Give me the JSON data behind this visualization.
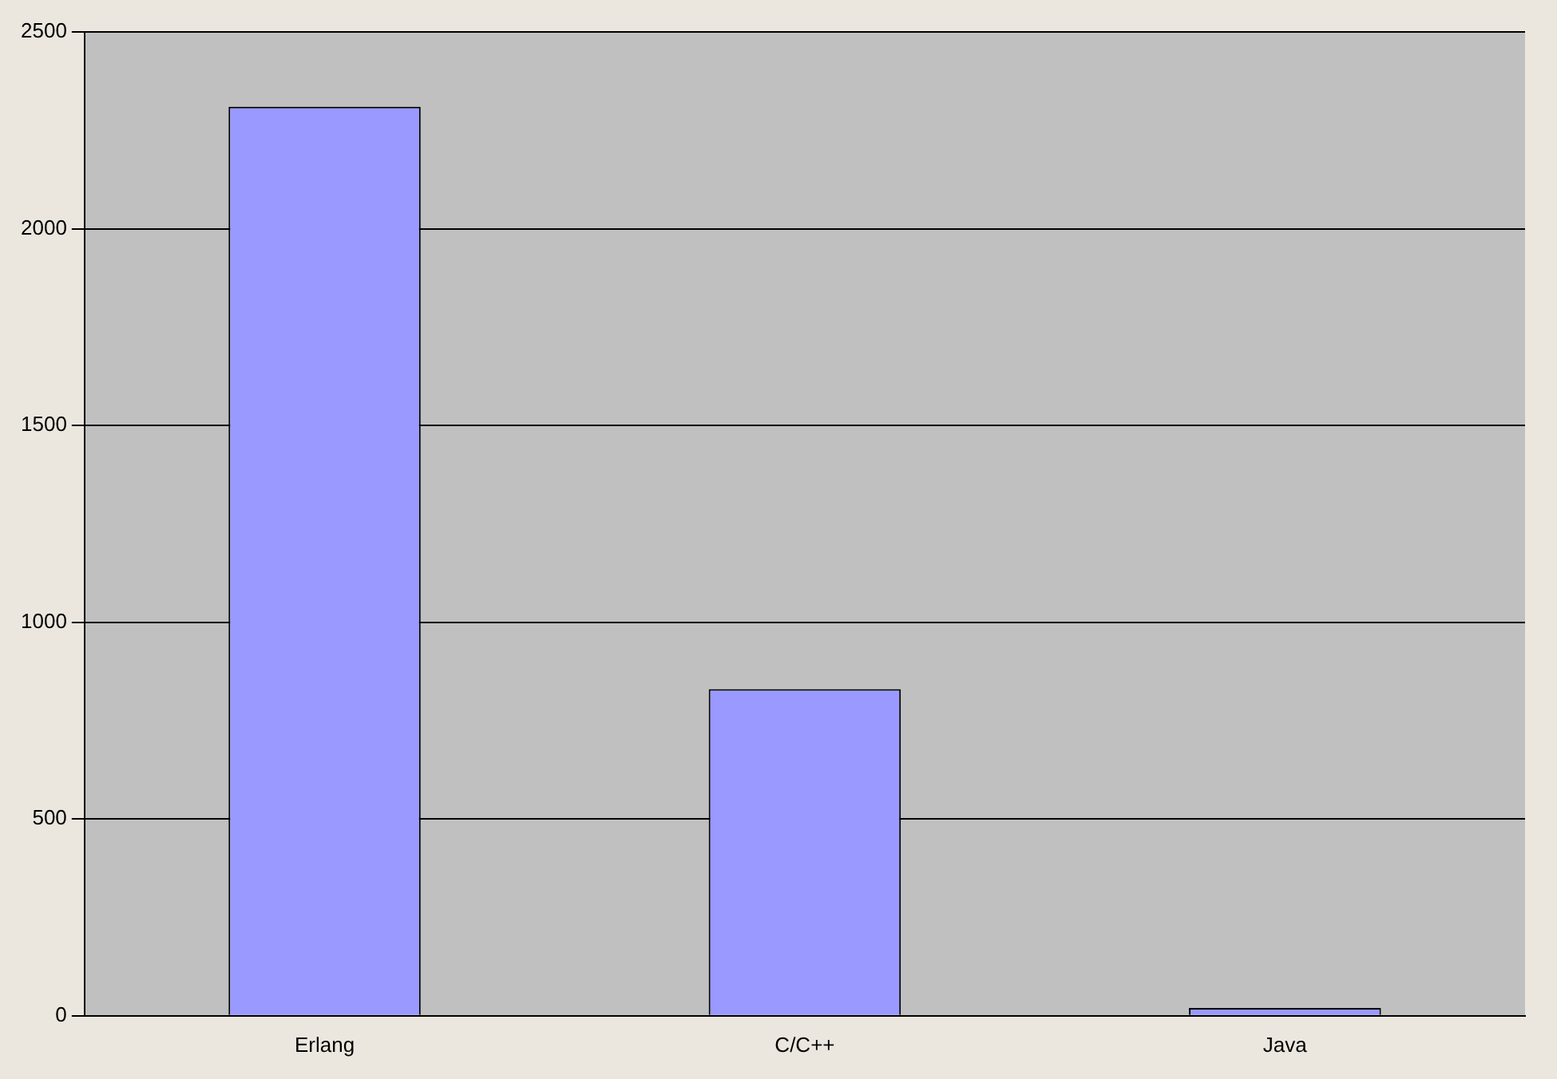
{
  "chart_data": {
    "type": "bar",
    "categories": [
      "Erlang",
      "C/C++",
      "Java"
    ],
    "values": [
      2310,
      830,
      20
    ],
    "color": "#9999ff",
    "ylim": [
      0,
      2500
    ],
    "yticks": [
      0,
      500,
      1000,
      1500,
      2000,
      2500
    ],
    "grid": "y",
    "legend": false
  }
}
